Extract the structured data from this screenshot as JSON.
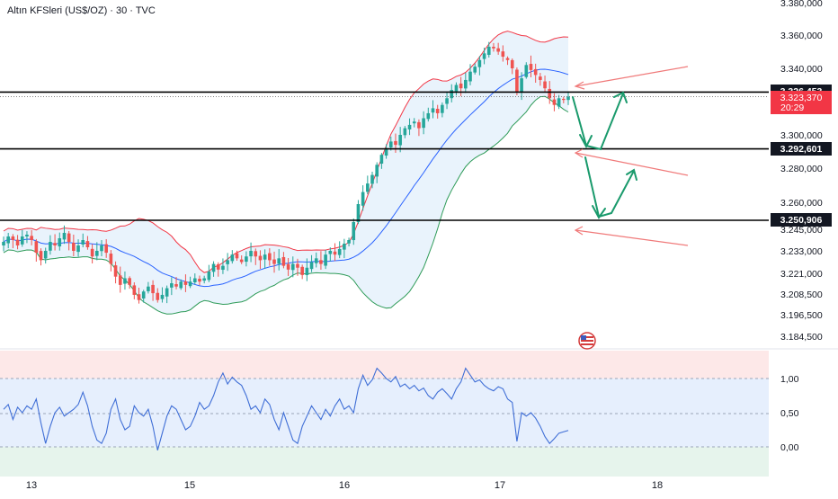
{
  "header": {
    "symbol_label": "Altın KFSleri (US$/OZ) · 30 · TVC"
  },
  "colors": {
    "up": "#26a69a",
    "down": "#ef5350",
    "band_upper": "#f23645",
    "band_lower": "#2e9b58",
    "band_mid": "#2962ff",
    "band_fill": "#e3f0fb",
    "rsi_line": "#3f6ed6",
    "rsi_top_fill": "#fde8e8",
    "rsi_mid_fill": "#e6effd",
    "rsi_bottom_fill": "#e6f4ec",
    "level_line": "#000000",
    "current_price_bg": "#f23645",
    "arrow_green": "#1a9a6c",
    "arrow_red": "#f07a7a"
  },
  "chart_data": [
    {
      "type": "candlestick",
      "price_axis": {
        "ticks": [
          "3.380,000",
          "3.360,000",
          "3.340,000",
          "3.300,000",
          "3.280,000",
          "3.260,000",
          "3.245,000",
          "3.233,000",
          "3.221,000",
          "3.208,500",
          "3.196,500",
          "3.184,500"
        ]
      },
      "x_axis": {
        "ticks": [
          "13",
          "15",
          "16",
          "17",
          "18"
        ]
      },
      "levels": [
        {
          "value": 3326.453,
          "label": "3.326,453"
        },
        {
          "value": 3292.601,
          "label": "3.292,601"
        },
        {
          "value": 3250.906,
          "label": "3.250,906"
        }
      ],
      "current_price": {
        "label": "3.323,370",
        "countdown": "20:29"
      },
      "bollinger_bands": true,
      "close_series": [
        3238,
        3241,
        3239,
        3236,
        3241,
        3242,
        3239,
        3232,
        3228,
        3233,
        3238,
        3236,
        3240,
        3243,
        3238,
        3233,
        3236,
        3239,
        3235,
        3230,
        3233,
        3236,
        3232,
        3226,
        3219,
        3214,
        3218,
        3214,
        3208,
        3205,
        3210,
        3213,
        3209,
        3205,
        3208,
        3212,
        3215,
        3213,
        3216,
        3214,
        3216,
        3218,
        3216,
        3218,
        3222,
        3226,
        3223,
        3225,
        3228,
        3231,
        3229,
        3227,
        3230,
        3233,
        3230,
        3228,
        3231,
        3228,
        3226,
        3229,
        3225,
        3223,
        3226,
        3224,
        3220,
        3224,
        3227,
        3229,
        3226,
        3231,
        3233,
        3231,
        3234,
        3237,
        3239,
        3249,
        3259,
        3266,
        3271,
        3276,
        3282,
        3288,
        3292,
        3296,
        3294,
        3300,
        3304,
        3306,
        3308,
        3304,
        3310,
        3313,
        3316,
        3313,
        3318,
        3322,
        3327,
        3330,
        3328,
        3333,
        3338,
        3341,
        3345,
        3349,
        3353,
        3352,
        3350,
        3347,
        3345,
        3340,
        3326,
        3334,
        3342,
        3339,
        3336,
        3333,
        3328,
        3322,
        3318,
        3322,
        3321,
        3323
      ],
      "shape_description": "Gold 30m candles with Bollinger Bands: sideways to lower near 3.205–3.245, sharp rally on the 16th to about 3.355, pullback to about 3.323."
    },
    {
      "type": "line",
      "name": "oscillator",
      "y_axis": {
        "ticks": [
          "1,00",
          "0,50",
          "0,00"
        ]
      },
      "values": [
        0.55,
        0.62,
        0.4,
        0.58,
        0.5,
        0.6,
        0.55,
        0.7,
        0.35,
        0.05,
        0.3,
        0.5,
        0.58,
        0.45,
        0.5,
        0.55,
        0.62,
        0.8,
        0.6,
        0.3,
        0.1,
        0.05,
        0.2,
        0.55,
        0.7,
        0.4,
        0.25,
        0.3,
        0.6,
        0.5,
        0.45,
        0.55,
        0.3,
        -0.05,
        0.2,
        0.45,
        0.6,
        0.55,
        0.4,
        0.25,
        0.3,
        0.45,
        0.65,
        0.55,
        0.6,
        0.75,
        0.95,
        1.08,
        0.92,
        1.02,
        0.95,
        0.9,
        0.75,
        0.55,
        0.6,
        0.5,
        0.7,
        0.62,
        0.4,
        0.25,
        0.5,
        0.3,
        0.1,
        0.05,
        0.3,
        0.45,
        0.6,
        0.5,
        0.4,
        0.55,
        0.45,
        0.6,
        0.7,
        0.55,
        0.6,
        0.5,
        0.85,
        1.05,
        0.9,
        0.98,
        1.15,
        1.08,
        1.0,
        0.95,
        1.03,
        0.88,
        0.92,
        0.85,
        0.9,
        0.82,
        0.86,
        0.75,
        0.7,
        0.8,
        0.85,
        0.78,
        0.7,
        0.85,
        0.95,
        1.15,
        1.05,
        0.95,
        0.98,
        0.9,
        0.85,
        0.82,
        0.88,
        0.85,
        0.7,
        0.65,
        0.08,
        0.5,
        0.45,
        0.5,
        0.42,
        0.3,
        0.15,
        0.05,
        0.12,
        0.2,
        0.22,
        0.24
      ]
    }
  ]
}
